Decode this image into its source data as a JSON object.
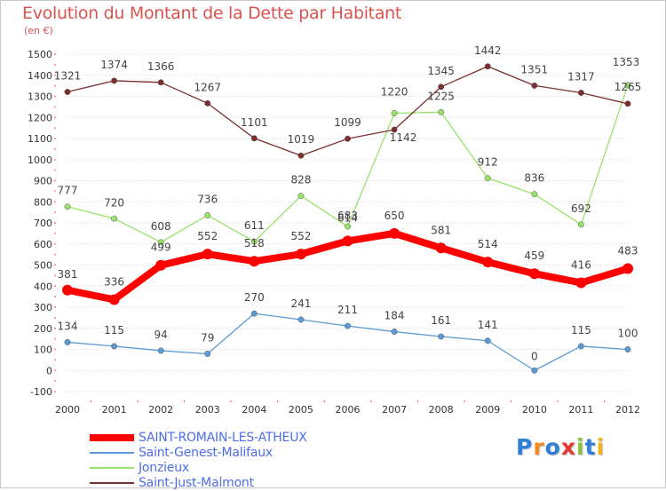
{
  "header": {
    "title": "Evolution du Montant de la Dette par Habitant",
    "unit": "(en €)"
  },
  "chart_data": {
    "type": "line",
    "title": "Evolution du Montant de la Dette par Habitant",
    "subtitle": "(en €)",
    "xlabel": "",
    "ylabel": "",
    "x": [
      2000,
      2001,
      2002,
      2003,
      2004,
      2005,
      2006,
      2007,
      2008,
      2009,
      2010,
      2011,
      2012
    ],
    "ylim": [
      -100,
      1500
    ],
    "yticks": [
      -100,
      0,
      100,
      200,
      300,
      400,
      500,
      600,
      700,
      800,
      900,
      1000,
      1100,
      1200,
      1300,
      1400,
      1500
    ],
    "grid": "horizontal",
    "legend_position": "bottom-left",
    "series": [
      {
        "name": "SAINT-ROMAIN-LES-ATHEUX",
        "color": "#ff0000",
        "values": [
          381,
          336,
          499,
          552,
          518,
          552,
          614,
          650,
          581,
          514,
          459,
          416,
          483
        ]
      },
      {
        "name": "Saint-Genest-Malifaux",
        "color": "#5b9bd5",
        "values": [
          134,
          115,
          94,
          79,
          270,
          241,
          211,
          184,
          161,
          141,
          0,
          115,
          100
        ]
      },
      {
        "name": "Jonzieux",
        "color": "#99e26b",
        "values": [
          777,
          720,
          608,
          736,
          611,
          828,
          683,
          1220,
          1225,
          912,
          836,
          692,
          1353
        ]
      },
      {
        "name": "Saint-Just-Malmont",
        "color": "#7b2f2f",
        "values": [
          1321,
          1374,
          1366,
          1267,
          1101,
          1019,
          1099,
          1142,
          1345,
          1442,
          1351,
          1317,
          1265
        ]
      }
    ]
  },
  "logo": {
    "text": "Proxiti"
  }
}
